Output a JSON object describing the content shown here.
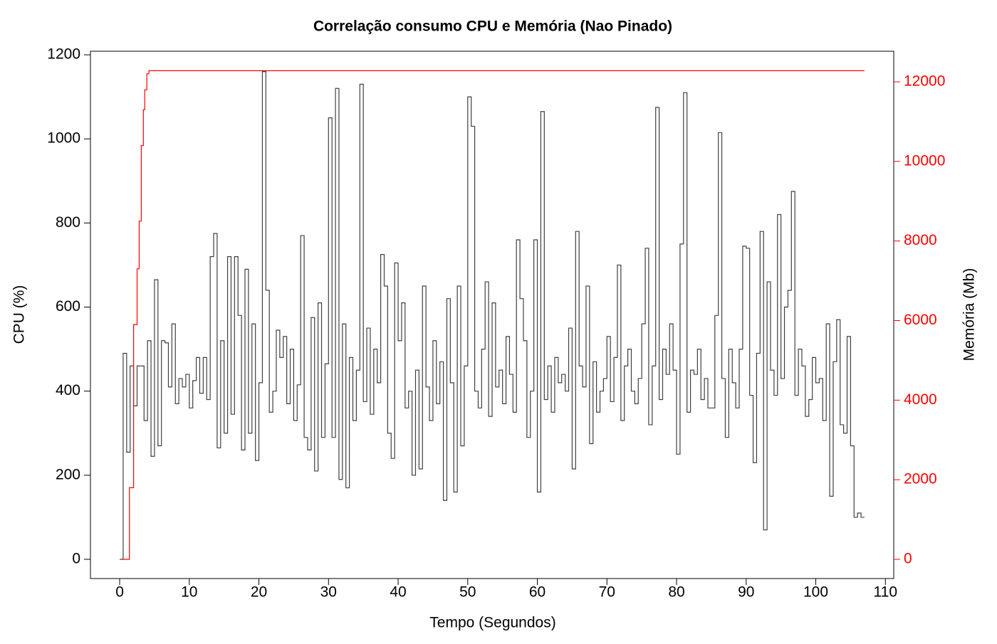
{
  "chart_data": {
    "type": "line",
    "step": "post",
    "title": "Correlação consumo CPU e Memória (Nao Pinado)",
    "xlabel": "Tempo (Segundos)",
    "ylabel": "CPU (%)",
    "y2label": "Memória (Mb)",
    "xlim": [
      -4.2,
      111.2
    ],
    "ylim": [
      -45.7,
      1208.5
    ],
    "y2lim": [
      -483,
      12769
    ],
    "xticks": [
      0,
      10,
      20,
      30,
      40,
      50,
      60,
      70,
      80,
      90,
      100,
      110
    ],
    "yticks": [
      0,
      200,
      400,
      600,
      800,
      1000,
      1200
    ],
    "y2ticks": [
      0,
      2000,
      4000,
      6000,
      8000,
      10000,
      12000
    ],
    "y2color": "#ff0000",
    "series": [
      {
        "color": "#404040",
        "x": [
          0,
          0.5,
          1,
          1.5,
          2,
          2.5,
          3,
          3.5,
          4,
          4.5,
          5,
          5.5,
          6,
          6.5,
          7,
          7.5,
          8,
          8.5,
          9,
          9.5,
          10,
          10.5,
          11,
          11.5,
          12,
          12.5,
          13,
          13.5,
          14,
          14.5,
          15,
          15.5,
          16,
          16.5,
          17,
          17.5,
          18,
          18.5,
          19,
          19.5,
          20,
          20.5,
          21,
          21.5,
          22,
          22.5,
          23,
          23.5,
          24,
          24.5,
          25,
          25.5,
          26,
          26.5,
          27,
          27.5,
          28,
          28.5,
          29,
          29.5,
          30,
          30.5,
          31,
          31.5,
          32,
          32.5,
          33,
          33.5,
          34,
          34.5,
          35,
          35.5,
          36,
          36.5,
          37,
          37.5,
          38,
          38.5,
          39,
          39.5,
          40,
          40.5,
          41,
          41.5,
          42,
          42.5,
          43,
          43.5,
          44,
          44.5,
          45,
          45.5,
          46,
          46.5,
          47,
          47.5,
          48,
          48.5,
          49,
          49.5,
          50,
          50.5,
          51,
          51.5,
          52,
          52.5,
          53,
          53.5,
          54,
          54.5,
          55,
          55.5,
          56,
          56.5,
          57,
          57.5,
          58,
          58.5,
          59,
          59.5,
          60,
          60.5,
          61,
          61.5,
          62,
          62.5,
          63,
          63.5,
          64,
          64.5,
          65,
          65.5,
          66,
          66.5,
          67,
          67.5,
          68,
          68.5,
          69,
          69.5,
          70,
          70.5,
          71,
          71.5,
          72,
          72.5,
          73,
          73.5,
          74,
          74.5,
          75,
          75.5,
          76,
          76.5,
          77,
          77.5,
          78,
          78.5,
          79,
          79.5,
          80,
          80.5,
          81,
          81.5,
          82,
          82.5,
          83,
          83.5,
          84,
          84.5,
          85,
          85.5,
          86,
          86.5,
          87,
          87.5,
          88,
          88.5,
          89,
          89.5,
          90,
          90.5,
          91,
          91.5,
          92,
          92.5,
          93,
          93.5,
          94,
          94.5,
          95,
          95.5,
          96,
          96.5,
          97,
          97.5,
          98,
          98.5,
          99,
          99.5,
          100,
          100.5,
          101,
          101.5,
          102,
          102.5,
          103,
          103.5,
          104,
          104.5,
          105,
          105.5,
          106,
          106.5,
          107
        ],
        "values": [
          0,
          490,
          255,
          460,
          365,
          460,
          460,
          330,
          520,
          245,
          665,
          270,
          520,
          515,
          410,
          560,
          370,
          430,
          410,
          440,
          360,
          425,
          480,
          395,
          480,
          380,
          720,
          775,
          265,
          520,
          300,
          720,
          345,
          720,
          580,
          260,
          690,
          300,
          560,
          235,
          420,
          1160,
          640,
          350,
          400,
          545,
          480,
          530,
          370,
          500,
          330,
          415,
          770,
          290,
          260,
          575,
          210,
          610,
          290,
          465,
          1050,
          290,
          1120,
          190,
          560,
          170,
          480,
          330,
          450,
          1130,
          375,
          550,
          345,
          500,
          420,
          725,
          650,
          300,
          240,
          705,
          520,
          610,
          360,
          400,
          200,
          450,
          215,
          650,
          410,
          330,
          520,
          370,
          470,
          140,
          620,
          420,
          160,
          650,
          270,
          460,
          1100,
          1030,
          400,
          360,
          500,
          660,
          340,
          610,
          410,
          450,
          370,
          530,
          440,
          350,
          760,
          620,
          520,
          290,
          400,
          760,
          160,
          1065,
          380,
          460,
          350,
          480,
          420,
          440,
          400,
          550,
          215,
          780,
          460,
          410,
          650,
          275,
          470,
          350,
          400,
          430,
          530,
          375,
          480,
          700,
          330,
          460,
          500,
          400,
          370,
          430,
          560,
          740,
          320,
          460,
          1075,
          380,
          500,
          440,
          560,
          450,
          250,
          750,
          1110,
          350,
          450,
          440,
          500,
          380,
          430,
          360,
          360,
          580,
          1015,
          430,
          290,
          500,
          420,
          360,
          500,
          745,
          740,
          390,
          230,
          490,
          780,
          70,
          660,
          450,
          390,
          820,
          430,
          600,
          640,
          875,
          390,
          500,
          460,
          340,
          380,
          480,
          420,
          430,
          330,
          560,
          150,
          470,
          570,
          320,
          300,
          530,
          270,
          100,
          110,
          100,
          100
        ]
      },
      {
        "color": "#ff0000",
        "axis": "y2",
        "x": [
          0.3,
          1.4,
          2.0,
          2.5,
          2.8,
          3.1,
          3.4,
          3.6,
          3.9,
          4.2,
          107
        ],
        "values": [
          0,
          1800,
          5900,
          7300,
          8500,
          10400,
          11300,
          11800,
          12200,
          12280,
          12280
        ]
      }
    ]
  }
}
